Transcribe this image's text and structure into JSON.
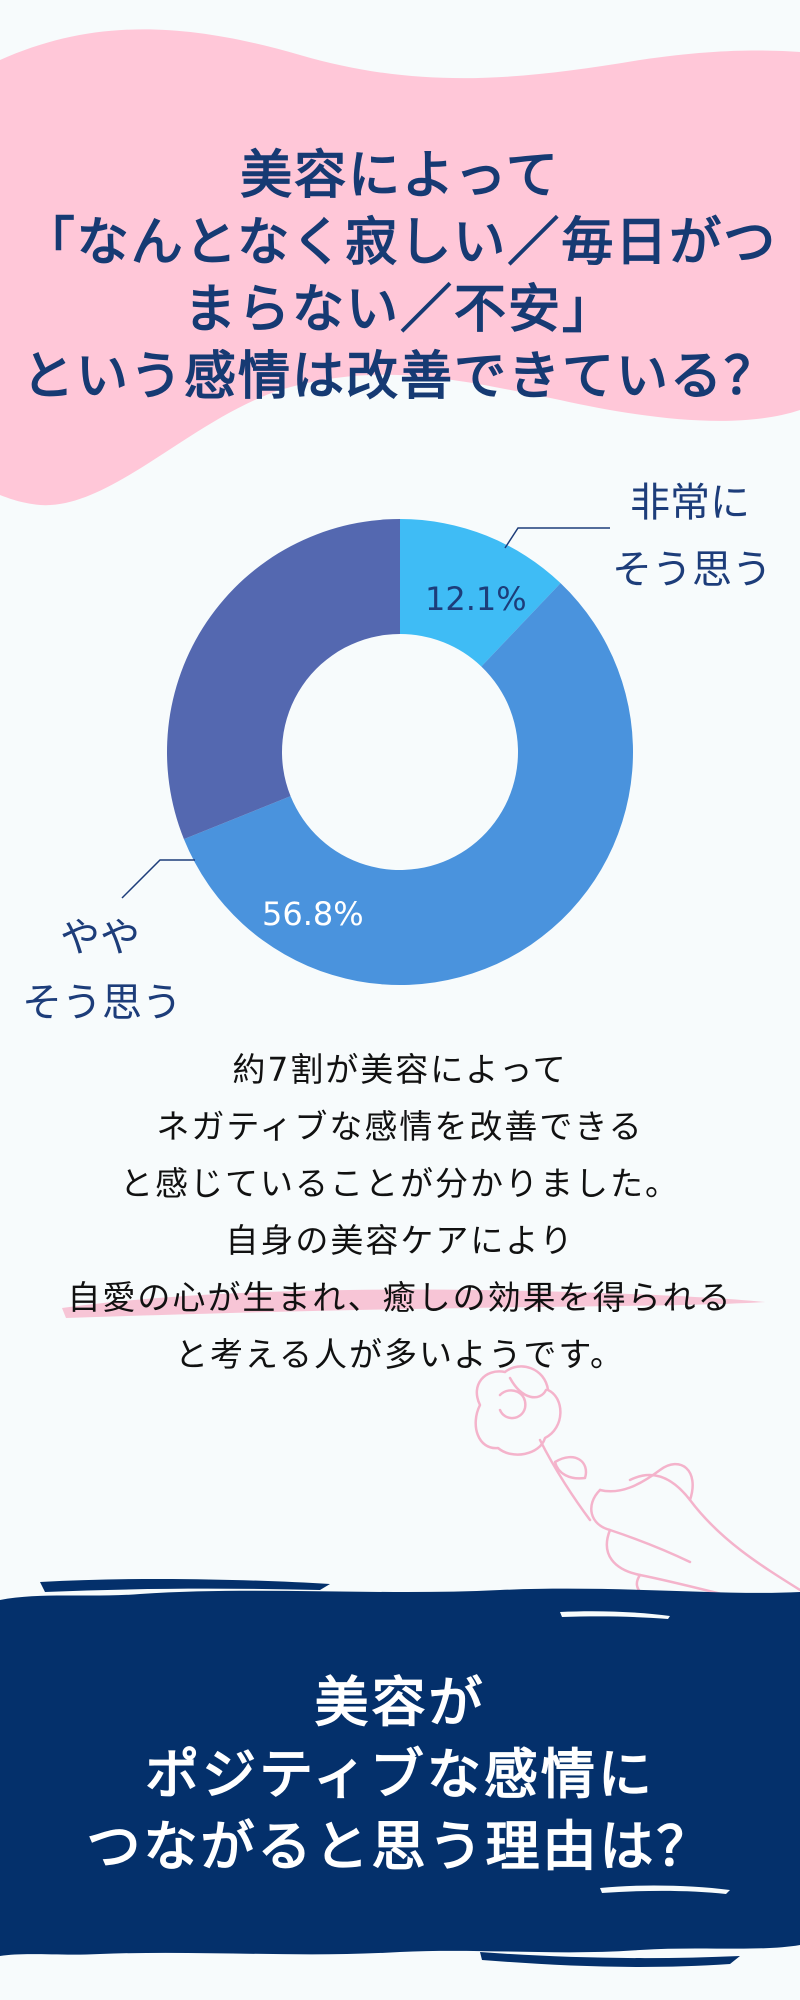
{
  "header": {
    "title_lines": [
      "美容によって",
      "「なんとなく寂しい／毎日がつ",
      "まらない／不安」",
      "という感情は改善できている？"
    ]
  },
  "chart_data": {
    "type": "pie",
    "segments": [
      {
        "label": "非常に\nそう思う",
        "value": 12.1,
        "value_label": "12.1%",
        "color": "#3fbcf5",
        "label_color": "#1d3d7a"
      },
      {
        "label": "",
        "value": 56.8,
        "value_label": "56.8%",
        "color": "#4a93dd",
        "label_color": "#ffffff"
      },
      {
        "label": "",
        "value": 31.1,
        "value_label": "",
        "color": "#5468b0",
        "label_color": "#ffffff"
      }
    ],
    "labels": {
      "very": {
        "line1": "非常に",
        "line2": "そう思う"
      },
      "somewhat": {
        "line1": "やや",
        "line2": "そう思う"
      }
    }
  },
  "body": {
    "lines": [
      "約7割が美容によって",
      "ネガティブな感情を改善できる",
      "と感じていることが分かりました。",
      "自身の美容ケアにより",
      "自愛の心が生まれ、癒しの効果を得られる",
      "と考える人が多いようです。"
    ],
    "highlight_color": "#f6bfd2"
  },
  "banner": {
    "lines": [
      "美容が",
      "ポジティブな感情に",
      "つながると思う理由は？"
    ],
    "color": "#04306b"
  },
  "colors": {
    "header_bg": "#ffc7d8",
    "title": "#163a73",
    "illustration": "#f4b3cb"
  }
}
